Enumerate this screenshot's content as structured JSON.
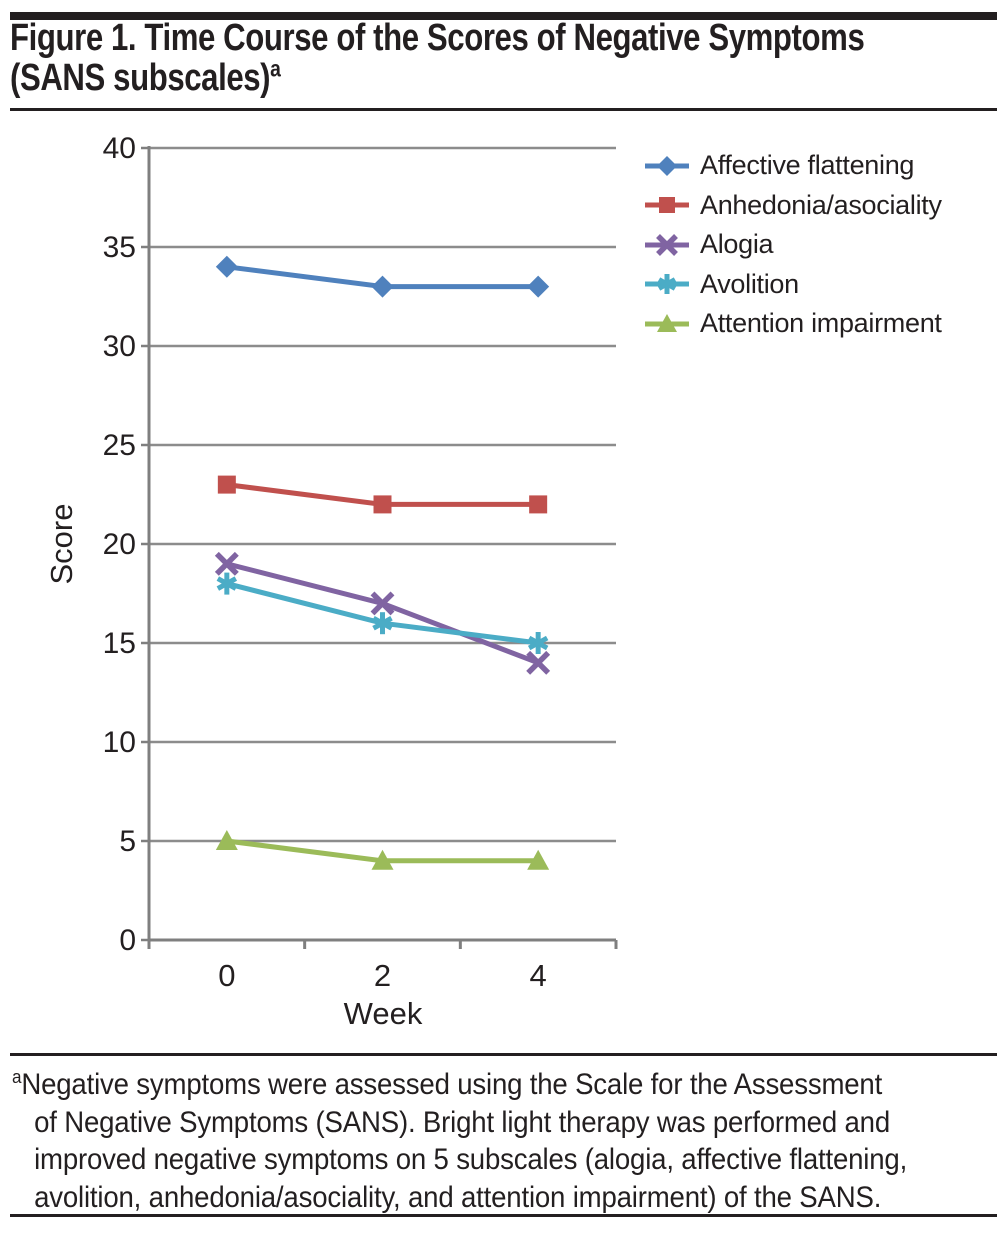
{
  "figure": {
    "title_line1": "Figure 1. Time Course of the Scores of Negative Symptoms",
    "title_line2": "(SANS subscales)",
    "title_superscript": "a",
    "footnote_superscript": "a",
    "footnote_lines": [
      "Negative symptoms were assessed using the Scale for the Assessment",
      "of Negative Symptoms (SANS). Bright light therapy was performed and",
      "improved negative symptoms on 5 subscales (alogia, affective flattening,",
      "avolition, anhedonia/asociality, and attention impairment) of the SANS."
    ]
  },
  "chart_data": {
    "type": "line",
    "title": "",
    "xlabel": "Week",
    "ylabel": "Score",
    "categories": [
      "0",
      "2",
      "4"
    ],
    "ylim": [
      0,
      40
    ],
    "ytick_interval": 5,
    "grid": true,
    "legend_position": "right",
    "series": [
      {
        "name": "Affective flattening",
        "marker": "diamond",
        "color": "#4F81BD",
        "values": [
          34,
          33,
          33
        ]
      },
      {
        "name": "Anhedonia/asociality",
        "marker": "square",
        "color": "#C0504D",
        "values": [
          23,
          22,
          22
        ]
      },
      {
        "name": "Alogia",
        "marker": "x",
        "color": "#8064A2",
        "values": [
          19,
          17,
          14
        ]
      },
      {
        "name": "Avolition",
        "marker": "asterisk",
        "color": "#4BACC6",
        "values": [
          18,
          16,
          15
        ]
      },
      {
        "name": "Attention impairment",
        "marker": "triangle",
        "color": "#9BBB59",
        "values": [
          5,
          4,
          4
        ]
      }
    ]
  },
  "colors": {
    "text": "#231f20",
    "rule": "#231f20",
    "gridline": "#8c8c8c",
    "axis": "#7f7f7f"
  }
}
